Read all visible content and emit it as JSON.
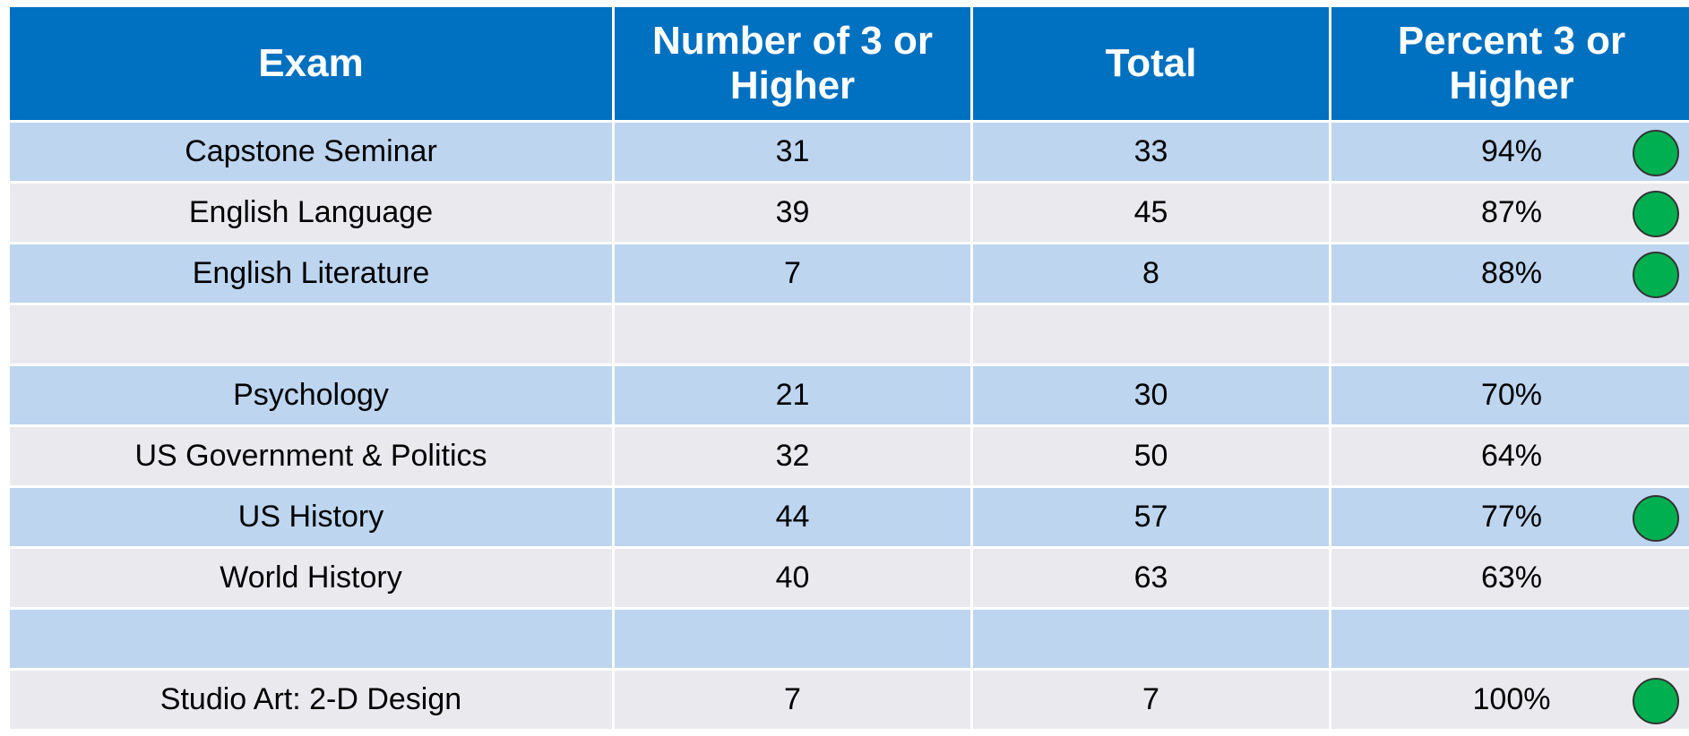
{
  "table": {
    "header": [
      "Exam",
      "Number of 3 or Higher",
      "Total",
      "Percent 3 or Higher"
    ],
    "rows": [
      [
        "Capstone Seminar",
        "31",
        "33",
        "94%"
      ],
      [
        "English Language",
        "39",
        "45",
        "87%"
      ],
      [
        "English Literature",
        "7",
        "8",
        "88%"
      ],
      [
        "Psychology",
        "21",
        "30",
        "70%"
      ],
      [
        "US Government & Politics",
        "32",
        "50",
        "64%"
      ],
      [
        "US History",
        "44",
        "57",
        "77%"
      ],
      [
        "World History",
        "40",
        "63",
        "63%"
      ],
      [
        "Studio Art: 2-D Design",
        "7",
        "7",
        "100%"
      ]
    ]
  }
}
